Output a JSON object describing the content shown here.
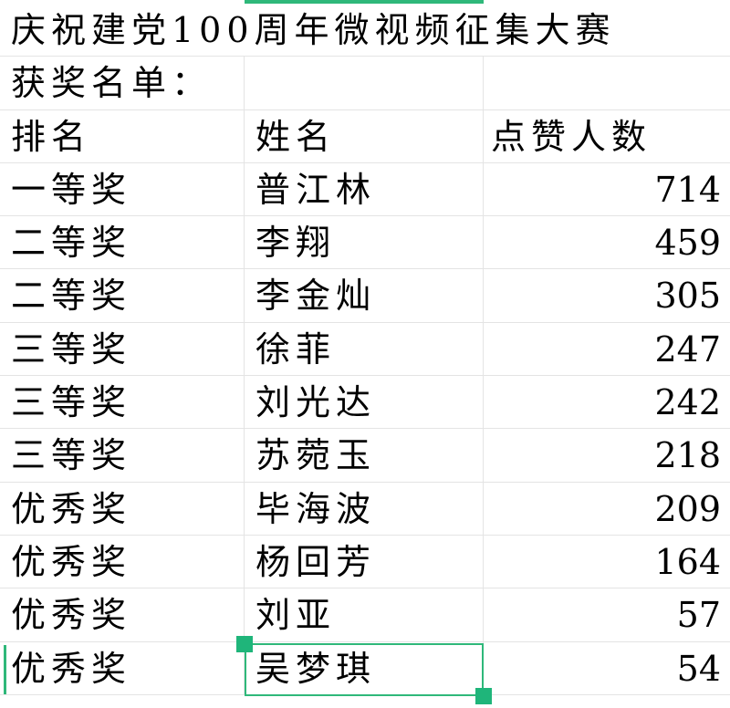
{
  "title": "庆祝建党100周年微视频征集大赛",
  "subtitle": "获奖名单：",
  "headers": [
    "排名",
    "姓名",
    "点赞人数"
  ],
  "rows": [
    [
      "一等奖",
      "普江林",
      "714"
    ],
    [
      "二等奖",
      "李翔",
      "459"
    ],
    [
      "二等奖",
      "李金灿",
      "305"
    ],
    [
      "三等奖",
      "徐菲",
      "247"
    ],
    [
      "三等奖",
      "刘光达",
      "242"
    ],
    [
      "三等奖",
      "苏菀玉",
      "218"
    ],
    [
      "优秀奖",
      "毕海波",
      "209"
    ],
    [
      "优秀奖",
      "杨回芳",
      "164"
    ],
    [
      "优秀奖",
      "刘亚",
      "57"
    ],
    [
      "优秀奖",
      "吴梦琪",
      "54"
    ]
  ],
  "accent_color": "#2fb87a"
}
